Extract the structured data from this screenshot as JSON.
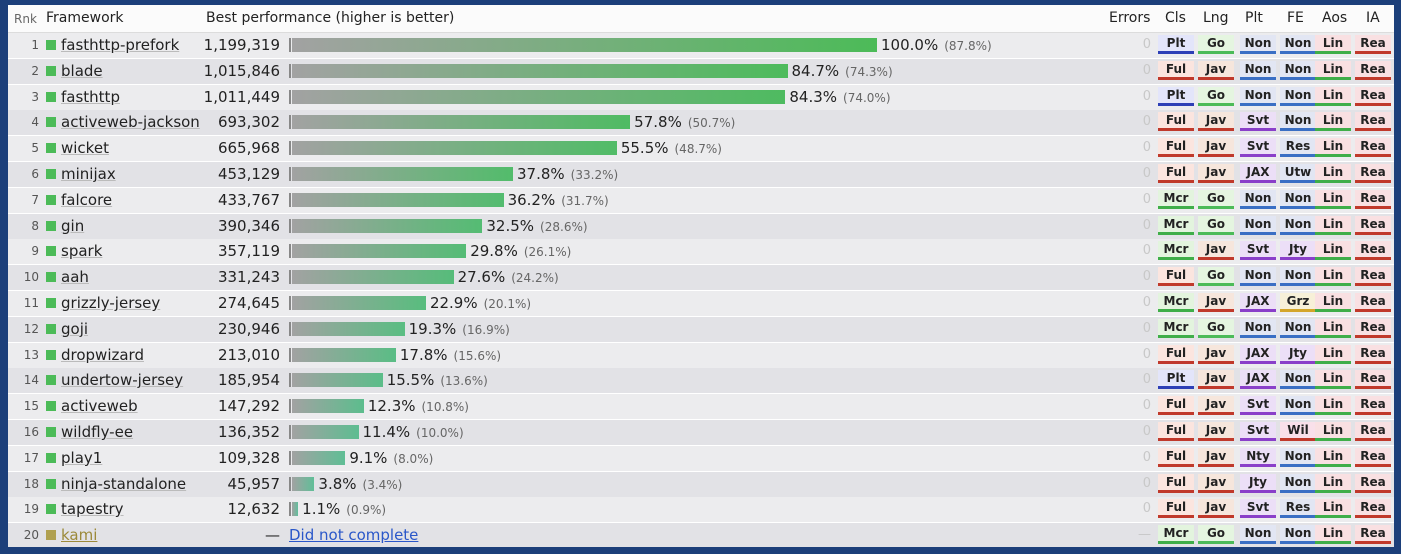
{
  "headers": {
    "rnk": "Rnk",
    "framework": "Framework",
    "performance": "Best performance (higher is better)",
    "errors": "Errors",
    "cls": "Cls",
    "lng": "Lng",
    "plt": "Plt",
    "fe": "FE",
    "aos": "Aos",
    "ia": "IA"
  },
  "tag_colors": {
    "Plt": {
      "bg": "#e3e5fa",
      "line": "#2d3fb6"
    },
    "Ful": {
      "bg": "#fbe5df",
      "line": "#c0392b"
    },
    "Mcr": {
      "bg": "#e3f4de",
      "line": "#3fae49"
    },
    "Go": {
      "bg": "#e5f5e0",
      "line": "#4cbb58"
    },
    "Jav": {
      "bg": "#f6e6dc",
      "line": "#c0392b"
    },
    "Non": {
      "bg": "#e2e6f3",
      "line": "#3a6fc4"
    },
    "Svt": {
      "bg": "#ecdff7",
      "line": "#8a3fc9"
    },
    "JAX": {
      "bg": "#ecdff7",
      "line": "#8a3fc9"
    },
    "Nty": {
      "bg": "#ecdff7",
      "line": "#8a3fc9"
    },
    "Jty": {
      "bg": "#ecdff7",
      "line": "#8a3fc9"
    },
    "Res": {
      "bg": "#e2e6f3",
      "line": "#3a6fc4"
    },
    "Utw": {
      "bg": "#e2e6f3",
      "line": "#3a6fc4"
    },
    "Grz": {
      "bg": "#f7f0d8",
      "line": "#d4a62a"
    },
    "Wil": {
      "bg": "#f9e0ea",
      "line": "#c0392b"
    },
    "Lin": {
      "bg": "#f9e0e2",
      "line": "#3fae49"
    },
    "Rea": {
      "bg": "#f9e0e2",
      "line": "#c0392b"
    }
  },
  "chart_data": {
    "type": "bar",
    "title": "Best performance (higher is better)",
    "max_value": 1199319,
    "rows": [
      {
        "rank": "1",
        "name": "fasthttp-prefork",
        "value": 1199319,
        "value_label": "1,199,319",
        "pct": "100.0%",
        "sub": "(87.8%)",
        "errors": "0",
        "tags": [
          "Plt",
          "Go",
          "Non",
          "Non",
          "Lin",
          "Rea"
        ]
      },
      {
        "rank": "2",
        "name": "blade",
        "value": 1015846,
        "value_label": "1,015,846",
        "pct": "84.7%",
        "sub": "(74.3%)",
        "errors": "0",
        "tags": [
          "Ful",
          "Jav",
          "Non",
          "Non",
          "Lin",
          "Rea"
        ]
      },
      {
        "rank": "3",
        "name": "fasthttp",
        "value": 1011449,
        "value_label": "1,011,449",
        "pct": "84.3%",
        "sub": "(74.0%)",
        "errors": "0",
        "tags": [
          "Plt",
          "Go",
          "Non",
          "Non",
          "Lin",
          "Rea"
        ]
      },
      {
        "rank": "4",
        "name": "activeweb-jackson",
        "value": 693302,
        "value_label": "693,302",
        "pct": "57.8%",
        "sub": "(50.7%)",
        "errors": "0",
        "tags": [
          "Ful",
          "Jav",
          "Svt",
          "Non",
          "Lin",
          "Rea"
        ]
      },
      {
        "rank": "5",
        "name": "wicket",
        "value": 665968,
        "value_label": "665,968",
        "pct": "55.5%",
        "sub": "(48.7%)",
        "errors": "0",
        "tags": [
          "Ful",
          "Jav",
          "Svt",
          "Res",
          "Lin",
          "Rea"
        ]
      },
      {
        "rank": "6",
        "name": "minijax",
        "value": 453129,
        "value_label": "453,129",
        "pct": "37.8%",
        "sub": "(33.2%)",
        "errors": "0",
        "tags": [
          "Ful",
          "Jav",
          "JAX",
          "Utw",
          "Lin",
          "Rea"
        ]
      },
      {
        "rank": "7",
        "name": "falcore",
        "value": 433767,
        "value_label": "433,767",
        "pct": "36.2%",
        "sub": "(31.7%)",
        "errors": "0",
        "tags": [
          "Mcr",
          "Go",
          "Non",
          "Non",
          "Lin",
          "Rea"
        ]
      },
      {
        "rank": "8",
        "name": "gin",
        "value": 390346,
        "value_label": "390,346",
        "pct": "32.5%",
        "sub": "(28.6%)",
        "errors": "0",
        "tags": [
          "Mcr",
          "Go",
          "Non",
          "Non",
          "Lin",
          "Rea"
        ]
      },
      {
        "rank": "9",
        "name": "spark",
        "value": 357119,
        "value_label": "357,119",
        "pct": "29.8%",
        "sub": "(26.1%)",
        "errors": "0",
        "tags": [
          "Mcr",
          "Jav",
          "Svt",
          "Jty",
          "Lin",
          "Rea"
        ]
      },
      {
        "rank": "10",
        "name": "aah",
        "value": 331243,
        "value_label": "331,243",
        "pct": "27.6%",
        "sub": "(24.2%)",
        "errors": "0",
        "tags": [
          "Ful",
          "Go",
          "Non",
          "Non",
          "Lin",
          "Rea"
        ]
      },
      {
        "rank": "11",
        "name": "grizzly-jersey",
        "value": 274645,
        "value_label": "274,645",
        "pct": "22.9%",
        "sub": "(20.1%)",
        "errors": "0",
        "tags": [
          "Mcr",
          "Jav",
          "JAX",
          "Grz",
          "Lin",
          "Rea"
        ]
      },
      {
        "rank": "12",
        "name": "goji",
        "value": 230946,
        "value_label": "230,946",
        "pct": "19.3%",
        "sub": "(16.9%)",
        "errors": "0",
        "tags": [
          "Mcr",
          "Go",
          "Non",
          "Non",
          "Lin",
          "Rea"
        ]
      },
      {
        "rank": "13",
        "name": "dropwizard",
        "value": 213010,
        "value_label": "213,010",
        "pct": "17.8%",
        "sub": "(15.6%)",
        "errors": "0",
        "tags": [
          "Ful",
          "Jav",
          "JAX",
          "Jty",
          "Lin",
          "Rea"
        ]
      },
      {
        "rank": "14",
        "name": "undertow-jersey",
        "value": 185954,
        "value_label": "185,954",
        "pct": "15.5%",
        "sub": "(13.6%)",
        "errors": "0",
        "tags": [
          "Plt",
          "Jav",
          "JAX",
          "Non",
          "Lin",
          "Rea"
        ]
      },
      {
        "rank": "15",
        "name": "activeweb",
        "value": 147292,
        "value_label": "147,292",
        "pct": "12.3%",
        "sub": "(10.8%)",
        "errors": "0",
        "tags": [
          "Ful",
          "Jav",
          "Svt",
          "Non",
          "Lin",
          "Rea"
        ]
      },
      {
        "rank": "16",
        "name": "wildfly-ee",
        "value": 136352,
        "value_label": "136,352",
        "pct": "11.4%",
        "sub": "(10.0%)",
        "errors": "0",
        "tags": [
          "Ful",
          "Jav",
          "Svt",
          "Wil",
          "Lin",
          "Rea"
        ]
      },
      {
        "rank": "17",
        "name": "play1",
        "value": 109328,
        "value_label": "109,328",
        "pct": "9.1%",
        "sub": "(8.0%)",
        "errors": "0",
        "tags": [
          "Ful",
          "Jav",
          "Nty",
          "Non",
          "Lin",
          "Rea"
        ]
      },
      {
        "rank": "18",
        "name": "ninja-standalone",
        "value": 45957,
        "value_label": "45,957",
        "pct": "3.8%",
        "sub": "(3.4%)",
        "errors": "0",
        "tags": [
          "Ful",
          "Jav",
          "Jty",
          "Non",
          "Lin",
          "Rea"
        ]
      },
      {
        "rank": "19",
        "name": "tapestry",
        "value": 12632,
        "value_label": "12,632",
        "pct": "1.1%",
        "sub": "(0.9%)",
        "errors": "0",
        "tags": [
          "Ful",
          "Jav",
          "Svt",
          "Res",
          "Lin",
          "Rea"
        ]
      },
      {
        "rank": "20",
        "name": "kami",
        "value": null,
        "value_label": "—",
        "dnc": "Did not complete",
        "errors": "—",
        "tags": [
          "Mcr",
          "Go",
          "Non",
          "Non",
          "Lin",
          "Rea"
        ]
      }
    ]
  }
}
